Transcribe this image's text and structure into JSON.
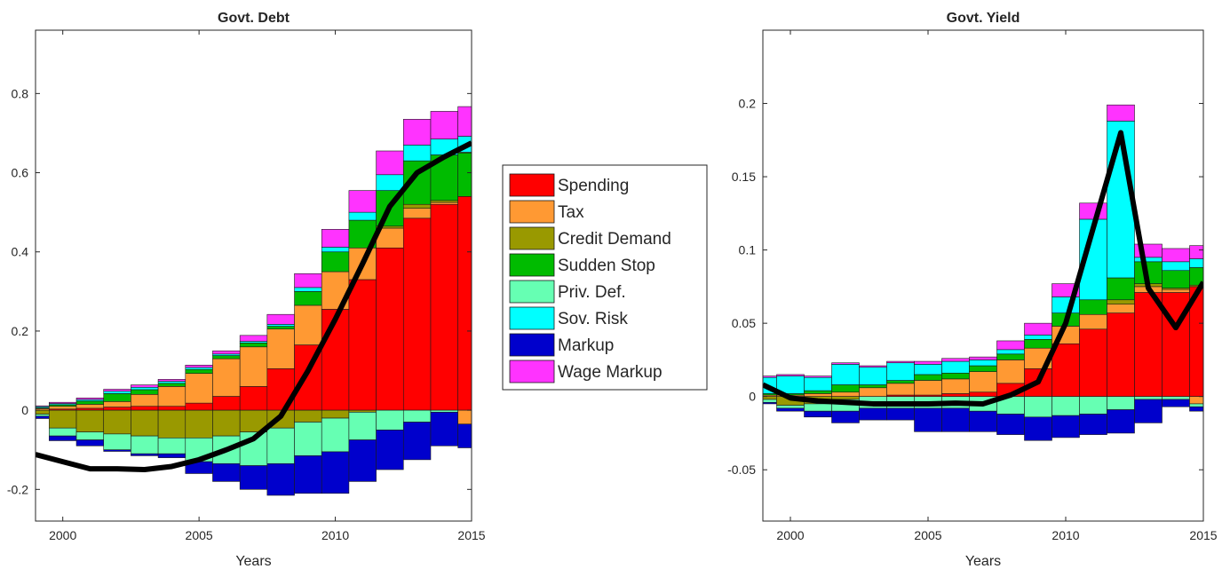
{
  "legend": {
    "entries": [
      {
        "label": "Spending",
        "color": "#ff0000"
      },
      {
        "label": "Tax",
        "color": "#ff9933"
      },
      {
        "label": "Credit Demand",
        "color": "#999900"
      },
      {
        "label": "Sudden Stop",
        "color": "#00bb00"
      },
      {
        "label": "Priv. Def.",
        "color": "#66ffb3"
      },
      {
        "label": "Sov. Risk",
        "color": "#00ffff"
      },
      {
        "label": "Markup",
        "color": "#0000cc"
      },
      {
        "label": "Wage Markup",
        "color": "#ff33ff"
      }
    ]
  },
  "chart_data": [
    {
      "type": "bar",
      "stacked": true,
      "title": "Govt. Debt",
      "xlabel": "Years",
      "ylabel": "",
      "xlim": [
        1999,
        2015
      ],
      "ylim": [
        -0.28,
        0.96
      ],
      "xticks": [
        2000,
        2005,
        2010,
        2015
      ],
      "yticks": [
        -0.2,
        0,
        0.2,
        0.4,
        0.6,
        0.8
      ],
      "ytick_labels": [
        "-0.2",
        "0",
        "0.2",
        "0.4",
        "0.6",
        "0.8"
      ],
      "x": [
        1999,
        2000,
        2001,
        2002,
        2003,
        2004,
        2005,
        2006,
        2007,
        2008,
        2009,
        2010,
        2011,
        2012,
        2013,
        2014,
        2015
      ],
      "series": [
        {
          "name": "Spending",
          "values": [
            0.0,
            0.003,
            0.005,
            0.008,
            0.01,
            0.01,
            0.018,
            0.035,
            0.06,
            0.105,
            0.165,
            0.255,
            0.33,
            0.41,
            0.485,
            0.52,
            0.54
          ]
        },
        {
          "name": "Tax",
          "values": [
            0.004,
            0.007,
            0.01,
            0.014,
            0.03,
            0.05,
            0.075,
            0.095,
            0.1,
            0.1,
            0.1,
            0.095,
            0.08,
            0.05,
            0.025,
            0.005,
            -0.035
          ]
        },
        {
          "name": "Credit Demand",
          "values": [
            -0.01,
            -0.045,
            -0.055,
            -0.06,
            -0.065,
            -0.07,
            -0.07,
            -0.065,
            -0.055,
            -0.045,
            -0.03,
            -0.02,
            -0.005,
            0.005,
            0.01,
            0.005,
            0.0
          ]
        },
        {
          "name": "Sudden Stop",
          "values": [
            0.002,
            0.004,
            0.008,
            0.02,
            0.012,
            0.008,
            0.01,
            0.008,
            0.01,
            0.007,
            0.035,
            0.05,
            0.07,
            0.09,
            0.11,
            0.115,
            0.11
          ]
        },
        {
          "name": "Priv. Def.",
          "values": [
            -0.005,
            -0.02,
            -0.02,
            -0.04,
            -0.045,
            -0.04,
            -0.06,
            -0.07,
            -0.085,
            -0.09,
            -0.085,
            -0.085,
            -0.07,
            -0.05,
            -0.03,
            -0.005,
            0.002
          ]
        },
        {
          "name": "Sov. Risk",
          "values": [
            0.003,
            0.003,
            0.004,
            0.006,
            0.006,
            0.005,
            0.005,
            0.004,
            0.004,
            0.005,
            0.01,
            0.012,
            0.02,
            0.04,
            0.04,
            0.04,
            0.04
          ]
        },
        {
          "name": "Markup",
          "values": [
            -0.006,
            -0.012,
            -0.015,
            -0.004,
            -0.005,
            -0.01,
            -0.03,
            -0.045,
            -0.06,
            -0.08,
            -0.095,
            -0.105,
            -0.105,
            -0.1,
            -0.095,
            -0.085,
            -0.06
          ]
        },
        {
          "name": "Wage Markup",
          "values": [
            0.002,
            0.003,
            0.004,
            0.005,
            0.006,
            0.005,
            0.006,
            0.008,
            0.015,
            0.025,
            0.035,
            0.045,
            0.055,
            0.06,
            0.065,
            0.07,
            0.075
          ]
        }
      ],
      "line": {
        "name": "",
        "values": [
          -0.112,
          -0.13,
          -0.148,
          -0.148,
          -0.15,
          -0.142,
          -0.125,
          -0.1,
          -0.072,
          -0.015,
          0.1,
          0.23,
          0.37,
          0.515,
          0.6,
          0.64,
          0.675
        ]
      }
    },
    {
      "type": "bar",
      "stacked": true,
      "title": "Govt. Yield",
      "xlabel": "Years",
      "ylabel": "",
      "xlim": [
        1999,
        2015
      ],
      "ylim": [
        -0.085,
        0.25
      ],
      "xticks": [
        2000,
        2005,
        2010,
        2015
      ],
      "yticks": [
        -0.05,
        0,
        0.05,
        0.1,
        0.15,
        0.2
      ],
      "ytick_labels": [
        "-0.05",
        "0",
        "0.05",
        "0.1",
        "0.15",
        "0.2"
      ],
      "x": [
        1999,
        2000,
        2001,
        2002,
        2003,
        2004,
        2005,
        2006,
        2007,
        2008,
        2009,
        2010,
        2011,
        2012,
        2013,
        2014,
        2015
      ],
      "series": [
        {
          "name": "Spending",
          "values": [
            0.0,
            0.0,
            0.0,
            0.0,
            0.0,
            0.001,
            0.001,
            0.002,
            0.003,
            0.009,
            0.019,
            0.036,
            0.046,
            0.057,
            0.071,
            0.071,
            0.075
          ]
        },
        {
          "name": "Tax",
          "values": [
            0.001,
            0.001,
            0.002,
            0.003,
            0.006,
            0.008,
            0.01,
            0.01,
            0.014,
            0.016,
            0.014,
            0.012,
            0.01,
            0.006,
            0.004,
            0.002,
            -0.005
          ]
        },
        {
          "name": "Credit Demand",
          "values": [
            -0.002,
            -0.006,
            -0.005,
            -0.002,
            0.0,
            0.0,
            0.0,
            0.0,
            0.0,
            0.0,
            0.0,
            0.0,
            0.0,
            0.003,
            0.002,
            0.001,
            0.001
          ]
        },
        {
          "name": "Sudden Stop",
          "values": [
            0.001,
            0.001,
            0.002,
            0.005,
            0.002,
            0.002,
            0.004,
            0.004,
            0.004,
            0.004,
            0.006,
            0.009,
            0.01,
            0.015,
            0.015,
            0.012,
            0.012
          ]
        },
        {
          "name": "Priv. Def.",
          "values": [
            -0.002,
            -0.002,
            -0.005,
            -0.008,
            -0.008,
            -0.008,
            -0.008,
            -0.008,
            -0.01,
            -0.012,
            -0.014,
            -0.013,
            -0.012,
            -0.009,
            -0.002,
            -0.002,
            -0.002
          ]
        },
        {
          "name": "Sov. Risk",
          "values": [
            0.011,
            0.012,
            0.009,
            0.014,
            0.012,
            0.012,
            0.007,
            0.008,
            0.004,
            0.003,
            0.003,
            0.011,
            0.055,
            0.107,
            0.003,
            0.006,
            0.006
          ]
        },
        {
          "name": "Markup",
          "values": [
            -0.001,
            -0.002,
            -0.004,
            -0.008,
            -0.008,
            -0.008,
            -0.016,
            -0.016,
            -0.014,
            -0.014,
            -0.016,
            -0.015,
            -0.014,
            -0.016,
            -0.016,
            -0.005,
            -0.003
          ]
        },
        {
          "name": "Wage Markup",
          "values": [
            0.001,
            0.001,
            0.001,
            0.001,
            0.001,
            0.001,
            0.002,
            0.002,
            0.002,
            0.006,
            0.008,
            0.009,
            0.011,
            0.011,
            0.009,
            0.009,
            0.009
          ]
        }
      ],
      "line": {
        "name": "",
        "values": [
          0.008,
          -0.001,
          -0.003,
          -0.004,
          -0.005,
          -0.005,
          -0.005,
          -0.0045,
          -0.005,
          0.001,
          0.01,
          0.05,
          0.115,
          0.18,
          0.074,
          0.047,
          0.078
        ]
      }
    }
  ]
}
